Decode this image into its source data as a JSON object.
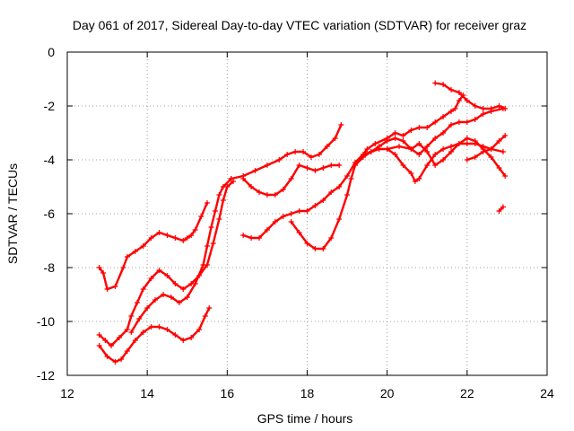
{
  "chart_data": {
    "type": "scatter",
    "title": "Day 061 of 2017, Sidereal Day-to-day VTEC variation (SDTVAR) for receiver graz",
    "xlabel": "GPS time / hours",
    "ylabel": "SDTVAR / TECUs",
    "xlim": [
      12,
      24
    ],
    "ylim": [
      -12,
      0
    ],
    "xticks": [
      "12",
      "14",
      "16",
      "18",
      "20",
      "22",
      "24"
    ],
    "yticks": [
      "0",
      "-2",
      "-4",
      "-6",
      "-8",
      "-10",
      "-12"
    ],
    "grid": true,
    "marker": "plus",
    "color": "#ff0000",
    "series": [
      {
        "points": [
          [
            12.8,
            -8.0
          ],
          [
            12.9,
            -8.2
          ],
          [
            13.0,
            -8.8
          ],
          [
            13.2,
            -8.7
          ],
          [
            13.4,
            -8.0
          ],
          [
            13.5,
            -7.6
          ],
          [
            13.7,
            -7.4
          ],
          [
            13.9,
            -7.2
          ],
          [
            14.1,
            -6.9
          ],
          [
            14.3,
            -6.7
          ],
          [
            14.5,
            -6.8
          ],
          [
            14.7,
            -6.9
          ],
          [
            14.9,
            -7.0
          ],
          [
            15.0,
            -6.9
          ],
          [
            15.1,
            -6.8
          ],
          [
            15.2,
            -6.6
          ],
          [
            15.35,
            -6.1
          ],
          [
            15.5,
            -5.6
          ]
        ]
      },
      {
        "points": [
          [
            12.8,
            -10.5
          ],
          [
            12.95,
            -10.7
          ],
          [
            13.1,
            -10.9
          ],
          [
            13.3,
            -10.6
          ],
          [
            13.5,
            -10.3
          ],
          [
            13.6,
            -9.8
          ],
          [
            13.75,
            -9.3
          ],
          [
            13.9,
            -8.8
          ],
          [
            14.1,
            -8.4
          ],
          [
            14.3,
            -8.1
          ],
          [
            14.5,
            -8.3
          ],
          [
            14.7,
            -8.6
          ],
          [
            14.9,
            -8.8
          ],
          [
            15.1,
            -8.6
          ],
          [
            15.3,
            -8.3
          ],
          [
            15.5,
            -7.9
          ],
          [
            15.65,
            -7.1
          ],
          [
            15.8,
            -6.2
          ],
          [
            15.9,
            -5.5
          ],
          [
            16.0,
            -5.0
          ],
          [
            16.15,
            -4.8
          ]
        ]
      },
      {
        "points": [
          [
            12.8,
            -10.9
          ],
          [
            13.0,
            -11.3
          ],
          [
            13.2,
            -11.5
          ],
          [
            13.35,
            -11.4
          ],
          [
            13.5,
            -11.1
          ],
          [
            13.7,
            -10.7
          ],
          [
            13.9,
            -10.4
          ],
          [
            14.1,
            -10.2
          ],
          [
            14.3,
            -10.2
          ],
          [
            14.5,
            -10.3
          ],
          [
            14.7,
            -10.5
          ],
          [
            14.9,
            -10.7
          ],
          [
            15.1,
            -10.6
          ],
          [
            15.3,
            -10.3
          ],
          [
            15.45,
            -9.8
          ],
          [
            15.55,
            -9.5
          ]
        ]
      },
      {
        "points": [
          [
            13.6,
            -10.4
          ],
          [
            13.8,
            -9.9
          ],
          [
            14.0,
            -9.5
          ],
          [
            14.2,
            -9.2
          ],
          [
            14.4,
            -9.0
          ],
          [
            14.6,
            -9.1
          ],
          [
            14.8,
            -9.3
          ],
          [
            15.0,
            -9.1
          ],
          [
            15.2,
            -8.6
          ],
          [
            15.4,
            -7.9
          ],
          [
            15.5,
            -7.2
          ],
          [
            15.6,
            -6.5
          ],
          [
            15.7,
            -5.9
          ],
          [
            15.8,
            -5.3
          ],
          [
            15.9,
            -5.0
          ],
          [
            16.1,
            -4.7
          ]
        ]
      },
      {
        "points": [
          [
            16.1,
            -4.7
          ],
          [
            16.4,
            -4.6
          ],
          [
            16.7,
            -4.4
          ],
          [
            17.0,
            -4.2
          ],
          [
            17.3,
            -4.0
          ],
          [
            17.5,
            -3.8
          ],
          [
            17.7,
            -3.7
          ],
          [
            17.9,
            -3.7
          ],
          [
            18.1,
            -3.9
          ],
          [
            18.3,
            -3.8
          ],
          [
            18.5,
            -3.5
          ],
          [
            18.7,
            -3.2
          ],
          [
            18.85,
            -2.7
          ]
        ]
      },
      {
        "points": [
          [
            16.4,
            -4.7
          ],
          [
            16.6,
            -5.0
          ],
          [
            16.8,
            -5.2
          ],
          [
            17.0,
            -5.3
          ],
          [
            17.2,
            -5.3
          ],
          [
            17.4,
            -5.1
          ],
          [
            17.6,
            -4.7
          ],
          [
            17.8,
            -4.2
          ],
          [
            18.0,
            -4.3
          ],
          [
            18.2,
            -4.4
          ],
          [
            18.4,
            -4.3
          ],
          [
            18.6,
            -4.2
          ],
          [
            18.8,
            -4.2
          ]
        ]
      },
      {
        "points": [
          [
            16.4,
            -6.8
          ],
          [
            16.6,
            -6.9
          ],
          [
            16.8,
            -6.9
          ],
          [
            17.0,
            -6.6
          ],
          [
            17.2,
            -6.3
          ],
          [
            17.4,
            -6.1
          ],
          [
            17.6,
            -6.0
          ],
          [
            17.8,
            -5.9
          ],
          [
            18.0,
            -5.9
          ],
          [
            18.2,
            -5.7
          ],
          [
            18.4,
            -5.5
          ],
          [
            18.6,
            -5.2
          ],
          [
            18.8,
            -5.0
          ],
          [
            19.0,
            -4.6
          ],
          [
            19.2,
            -4.1
          ],
          [
            19.4,
            -3.8
          ],
          [
            19.6,
            -3.7
          ],
          [
            19.8,
            -3.6
          ],
          [
            20.0,
            -3.6
          ],
          [
            20.2,
            -3.8
          ],
          [
            20.4,
            -4.2
          ],
          [
            20.6,
            -4.5
          ],
          [
            20.7,
            -4.8
          ],
          [
            20.8,
            -4.7
          ],
          [
            21.0,
            -4.2
          ],
          [
            21.2,
            -3.8
          ],
          [
            21.4,
            -3.6
          ],
          [
            21.6,
            -3.5
          ],
          [
            21.8,
            -3.4
          ],
          [
            22.0,
            -3.4
          ],
          [
            22.2,
            -3.4
          ],
          [
            22.4,
            -3.5
          ],
          [
            22.6,
            -3.6
          ],
          [
            22.9,
            -3.7
          ]
        ]
      },
      {
        "points": [
          [
            17.6,
            -6.3
          ],
          [
            17.8,
            -6.7
          ],
          [
            18.0,
            -7.1
          ],
          [
            18.2,
            -7.3
          ],
          [
            18.4,
            -7.3
          ],
          [
            18.6,
            -6.9
          ],
          [
            18.8,
            -6.2
          ],
          [
            19.0,
            -5.3
          ],
          [
            19.1,
            -4.7
          ],
          [
            19.2,
            -4.2
          ],
          [
            19.4,
            -3.9
          ],
          [
            19.6,
            -3.7
          ],
          [
            19.8,
            -3.5
          ],
          [
            20.0,
            -3.3
          ],
          [
            20.2,
            -3.2
          ],
          [
            20.4,
            -3.3
          ],
          [
            20.6,
            -3.6
          ],
          [
            20.8,
            -3.8
          ],
          [
            21.0,
            -3.5
          ],
          [
            21.2,
            -3.2
          ],
          [
            21.4,
            -3.0
          ],
          [
            21.6,
            -2.7
          ],
          [
            21.8,
            -2.6
          ],
          [
            22.0,
            -2.6
          ],
          [
            22.2,
            -2.5
          ],
          [
            22.4,
            -2.3
          ],
          [
            22.6,
            -2.2
          ],
          [
            22.9,
            -2.1
          ]
        ]
      },
      {
        "points": [
          [
            19.3,
            -4.0
          ],
          [
            19.5,
            -3.6
          ],
          [
            19.7,
            -3.4
          ],
          [
            20.0,
            -3.2
          ],
          [
            20.2,
            -3.0
          ],
          [
            20.4,
            -3.1
          ],
          [
            20.6,
            -2.9
          ],
          [
            20.8,
            -2.8
          ],
          [
            21.0,
            -2.8
          ],
          [
            21.2,
            -2.6
          ],
          [
            21.4,
            -2.4
          ],
          [
            21.6,
            -2.2
          ],
          [
            21.7,
            -2.1
          ],
          [
            21.8,
            -1.8
          ],
          [
            21.9,
            -1.6
          ]
        ]
      },
      {
        "points": [
          [
            20.0,
            -3.6
          ],
          [
            20.3,
            -3.5
          ],
          [
            20.6,
            -3.6
          ],
          [
            20.8,
            -3.4
          ],
          [
            21.0,
            -3.7
          ],
          [
            21.2,
            -4.2
          ],
          [
            21.4,
            -4.0
          ],
          [
            21.6,
            -3.7
          ],
          [
            21.8,
            -3.4
          ],
          [
            22.0,
            -3.2
          ],
          [
            22.2,
            -3.3
          ],
          [
            22.4,
            -3.6
          ],
          [
            22.6,
            -3.9
          ],
          [
            22.8,
            -4.3
          ],
          [
            22.95,
            -4.6
          ]
        ]
      },
      {
        "points": [
          [
            21.2,
            -1.15
          ],
          [
            21.4,
            -1.2
          ],
          [
            21.6,
            -1.4
          ],
          [
            21.8,
            -1.5
          ],
          [
            22.0,
            -1.8
          ],
          [
            22.2,
            -2.0
          ],
          [
            22.4,
            -2.1
          ],
          [
            22.6,
            -2.1
          ],
          [
            22.8,
            -2.0
          ],
          [
            22.95,
            -2.1
          ]
        ]
      },
      {
        "points": [
          [
            22.0,
            -4.0
          ],
          [
            22.2,
            -3.9
          ],
          [
            22.4,
            -3.7
          ],
          [
            22.6,
            -3.6
          ],
          [
            22.8,
            -3.3
          ],
          [
            22.95,
            -3.1
          ]
        ]
      },
      {
        "points": [
          [
            22.8,
            -5.9
          ],
          [
            22.9,
            -5.75
          ]
        ]
      }
    ]
  }
}
